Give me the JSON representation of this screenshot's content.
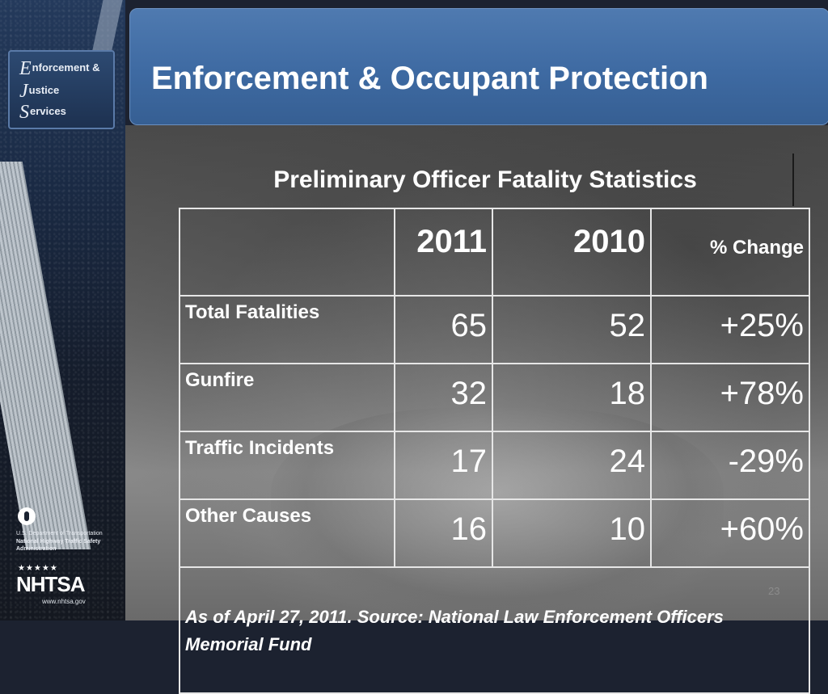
{
  "header": {
    "title": "Enforcement & Occupant Protection"
  },
  "logo": {
    "line1_initial": "E",
    "line1_rest": "nforcement &",
    "line2_initial": "J",
    "line2_rest": "ustice",
    "line3_initial": "S",
    "line3_rest": "ervices"
  },
  "agency": {
    "dot_line1": "U.S. Department of Transportation",
    "dot_line2": "National Highway Traffic Safety",
    "dot_line3": "Administration",
    "stars": "★★★★★",
    "nhtsa": "NHTSA",
    "url": "www.nhtsa.gov"
  },
  "table": {
    "title": "Preliminary Officer Fatality Statistics",
    "headers": [
      "",
      "2011",
      "2010",
      "% Change"
    ],
    "rows": [
      {
        "label": "Total Fatalities",
        "y2011": "65",
        "y2010": "52",
        "change": "+25%"
      },
      {
        "label": "Gunfire",
        "y2011": "32",
        "y2010": "18",
        "change": "+78%"
      },
      {
        "label": "Traffic Incidents",
        "y2011": "17",
        "y2010": "24",
        "change": "-29%"
      },
      {
        "label": "Other Causes",
        "y2011": "16",
        "y2010": "10",
        "change": "+60%"
      }
    ],
    "note": "As of April 27, 2011. Source: National Law Enforcement Officers Memorial Fund"
  },
  "slide_number": "23",
  "colors": {
    "title_bar": "#3e6aa2",
    "title_text": "#ffffff",
    "table_border": "#e6e6e6"
  }
}
